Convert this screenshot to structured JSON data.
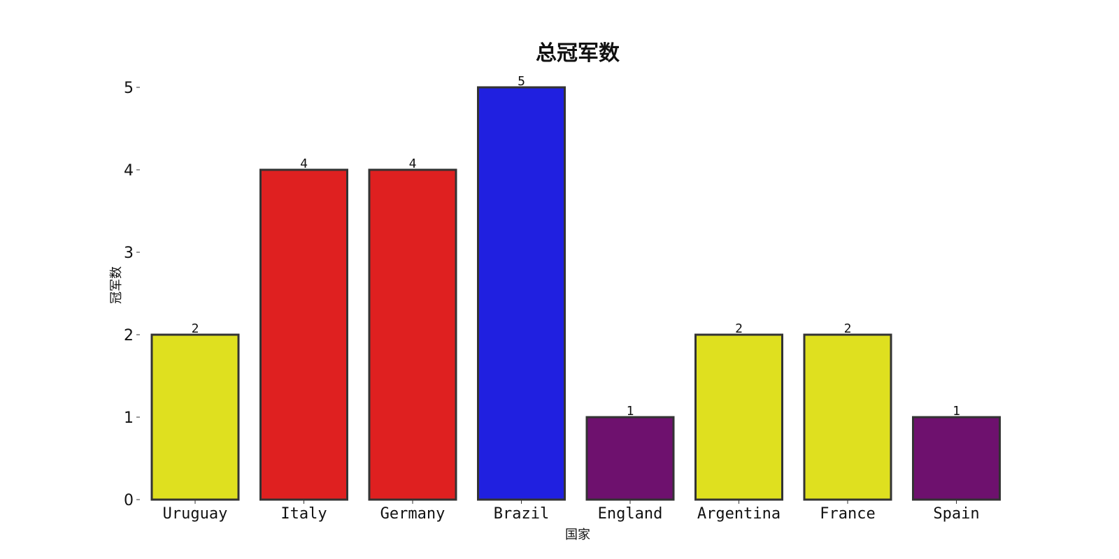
{
  "chart_data": {
    "type": "bar",
    "title": "总冠军数",
    "xlabel": "国家",
    "ylabel": "冠军数",
    "categories": [
      "Uruguay",
      "Italy",
      "Germany",
      "Brazil",
      "England",
      "Argentina",
      "France",
      "Spain"
    ],
    "values": [
      2,
      4,
      4,
      5,
      1,
      2,
      2,
      1
    ],
    "colors": [
      "#dfe01f",
      "#df2020",
      "#df2020",
      "#2020e0",
      "#6e116e",
      "#dfe01f",
      "#dfe01f",
      "#6e116e"
    ],
    "edge_color": "#333333",
    "ylim": [
      0,
      5
    ],
    "yticks": [
      "0",
      "1",
      "2",
      "3",
      "4",
      "5"
    ],
    "data_labels": [
      "2",
      "4",
      "4",
      "5",
      "1",
      "2",
      "2",
      "1"
    ],
    "grid": false,
    "legend": "none"
  }
}
